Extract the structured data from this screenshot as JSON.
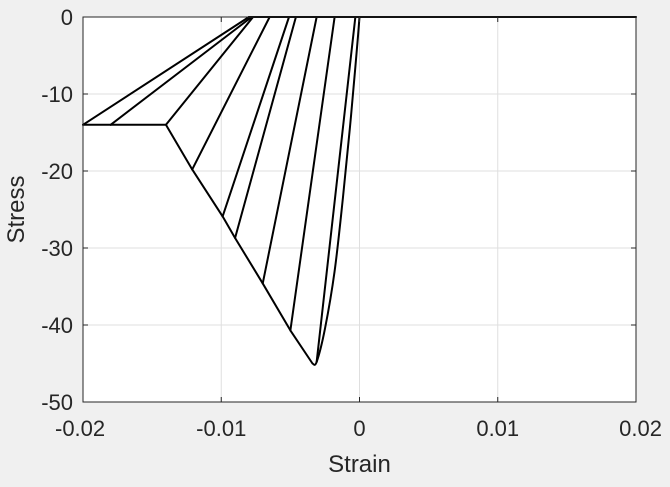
{
  "chart_data": {
    "type": "line",
    "title": "",
    "xlabel": "Strain",
    "ylabel": "Stress",
    "xlim": [
      -0.02,
      0.02
    ],
    "ylim": [
      -50,
      0
    ],
    "xticks": [
      -0.02,
      -0.01,
      0,
      0.01,
      0.02
    ],
    "xtick_labels": [
      "-0.02",
      "-0.01",
      "0",
      "0.01",
      "0.02"
    ],
    "yticks": [
      -50,
      -40,
      -30,
      -20,
      -10,
      0
    ],
    "ytick_labels": [
      "-50",
      "-40",
      "-30",
      "-20",
      "-10",
      "0"
    ],
    "grid": true,
    "legend": "none",
    "line_color": "#000000",
    "series": [
      {
        "values_description": "envelope",
        "x": [
          -0.02,
          -0.014,
          -0.0121,
          -0.0099,
          -0.009,
          -0.007,
          -0.005,
          -0.0034,
          -0.0031,
          -0.0025,
          -0.0018,
          -0.0012,
          -0.0007,
          -0.0003,
          -0.0001,
          0
        ],
        "y": [
          -14,
          -14,
          -19.8,
          -25.9,
          -28.7,
          -34.6,
          -40.7,
          -45,
          -44.8,
          -40.5,
          -33.0,
          -23.5,
          -14.5,
          -6.5,
          -2.3,
          0
        ]
      },
      {
        "x": [
          -0.008,
          0.02
        ],
        "y": [
          0,
          0
        ]
      },
      {
        "x": [
          -0.02,
          -0.008
        ],
        "y": [
          -14,
          0
        ]
      },
      {
        "x": [
          -0.018,
          -0.0078
        ],
        "y": [
          -14,
          0
        ]
      },
      {
        "x": [
          -0.014,
          -0.0077
        ],
        "y": [
          -14,
          0
        ]
      },
      {
        "x": [
          -0.0121,
          -0.0065
        ],
        "y": [
          -19.8,
          0
        ]
      },
      {
        "x": [
          -0.0099,
          -0.0051
        ],
        "y": [
          -25.9,
          0
        ]
      },
      {
        "x": [
          -0.009,
          -0.0046
        ],
        "y": [
          -28.7,
          0
        ]
      },
      {
        "x": [
          -0.007,
          -0.0031
        ],
        "y": [
          -34.6,
          0
        ]
      },
      {
        "x": [
          -0.005,
          -0.0018
        ],
        "y": [
          -40.7,
          0
        ]
      },
      {
        "x": [
          -0.0031,
          -0.0003
        ],
        "y": [
          -44.8,
          0
        ]
      }
    ]
  }
}
